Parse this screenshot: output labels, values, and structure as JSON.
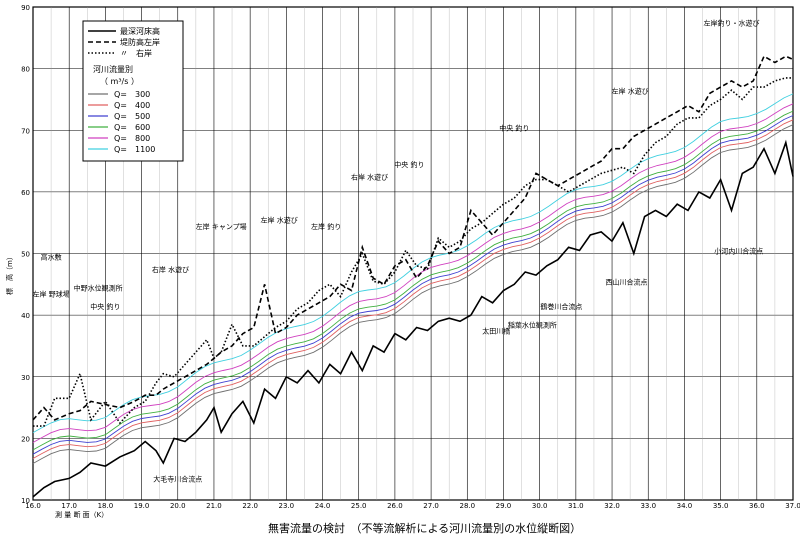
{
  "chart_data": {
    "type": "line",
    "title": "",
    "caption": "無害流量の検討　（不等流解析による河川流量別の水位縦断図）",
    "xlabel": "測 量 断 面（K）",
    "ylabel": "標　高（m）",
    "xlim": [
      16.0,
      37.0
    ],
    "ylim": [
      10,
      90
    ],
    "x_ticks": [
      "16.0",
      "17.0",
      "18.0",
      "19.0",
      "20.0",
      "21.0",
      "22.0",
      "23.0",
      "24.0",
      "25.0",
      "26.0",
      "27.0",
      "28.0",
      "29.0",
      "30.0",
      "31.0",
      "32.0",
      "33.0",
      "34.0",
      "35.0",
      "36.0",
      "37.0"
    ],
    "y_ticks": [
      "10",
      "20",
      "30",
      "40",
      "50",
      "60",
      "70",
      "80",
      "90"
    ],
    "grid": true,
    "legend": {
      "placement": "top-left",
      "lines": [
        {
          "label": "最深河床高",
          "style": "solid"
        },
        {
          "label": "堤防高左岸",
          "style": "dashed"
        },
        {
          "label": "〃　右岸",
          "style": "dotted"
        }
      ],
      "flow_title": "河川流量別",
      "flow_unit": "（ m³/s ）",
      "flows": [
        {
          "label": "Q=　300",
          "color": "#707070"
        },
        {
          "label": "Q=　400",
          "color": "#e06060"
        },
        {
          "label": "Q=　500",
          "color": "#4040d0"
        },
        {
          "label": "Q=　600",
          "color": "#40b040"
        },
        {
          "label": "Q=　800",
          "color": "#d040c0"
        },
        {
          "label": "Q=　1100",
          "color": "#40d0e0"
        }
      ]
    },
    "riverbed": {
      "name": "最深河床高",
      "x": [
        16.0,
        16.3,
        16.6,
        17.0,
        17.3,
        17.6,
        18.0,
        18.4,
        18.8,
        19.1,
        19.4,
        19.6,
        19.9,
        20.2,
        20.5,
        20.8,
        21.0,
        21.2,
        21.5,
        21.8,
        22.1,
        22.4,
        22.7,
        23.0,
        23.3,
        23.6,
        23.9,
        24.2,
        24.5,
        24.8,
        25.1,
        25.4,
        25.7,
        26.0,
        26.3,
        26.6,
        26.9,
        27.2,
        27.5,
        27.8,
        28.1,
        28.4,
        28.7,
        29.0,
        29.3,
        29.6,
        29.9,
        30.2,
        30.5,
        30.8,
        31.1,
        31.4,
        31.7,
        32.0,
        32.3,
        32.6,
        32.9,
        33.2,
        33.5,
        33.8,
        34.1,
        34.4,
        34.7,
        35.0,
        35.3,
        35.6,
        35.9,
        36.2,
        36.5,
        36.8,
        37.0
      ],
      "y": [
        10.5,
        12,
        13,
        13.5,
        14.5,
        16,
        15.5,
        17,
        18,
        19.5,
        18,
        16,
        20,
        19.5,
        21,
        23,
        25,
        21,
        24,
        26,
        22.5,
        28,
        26.5,
        30,
        29,
        31,
        29,
        32,
        30.5,
        34,
        31,
        35,
        34,
        37,
        36,
        38,
        37.5,
        39,
        39.5,
        39,
        40,
        43,
        42,
        44,
        45,
        47,
        46.5,
        48,
        49,
        51,
        50.5,
        53,
        53.5,
        52,
        55,
        50,
        56,
        57,
        56,
        58,
        57,
        60,
        59,
        62,
        57,
        63,
        64,
        67,
        63,
        68,
        62.5
      ]
    },
    "left_levee": {
      "name": "堤防高左岸",
      "x": [
        16.0,
        16.3,
        16.6,
        17.0,
        17.3,
        17.6,
        18.0,
        18.4,
        18.8,
        19.1,
        19.4,
        19.6,
        19.9,
        20.2,
        20.5,
        20.8,
        21.0,
        21.2,
        21.5,
        21.8,
        22.1,
        22.4,
        22.7,
        23.0,
        23.3,
        23.6,
        23.9,
        24.2,
        24.5,
        24.8,
        25.1,
        25.4,
        25.7,
        26.0,
        26.3,
        26.6,
        26.9,
        27.2,
        27.5,
        27.8,
        28.1,
        28.4,
        28.7,
        29.0,
        29.3,
        29.6,
        29.9,
        30.2,
        30.5,
        30.8,
        31.1,
        31.4,
        31.7,
        32.0,
        32.3,
        32.6,
        32.9,
        33.2,
        33.5,
        33.8,
        34.1,
        34.4,
        34.7,
        35.0,
        35.3,
        35.6,
        35.9,
        36.2,
        36.5,
        36.8,
        37.0
      ],
      "y": [
        23,
        25,
        23,
        24,
        24.5,
        26,
        25.5,
        25,
        26,
        27,
        27,
        28,
        29,
        30,
        31,
        32,
        33,
        34,
        35,
        37,
        38,
        45,
        37,
        38,
        40,
        41,
        42,
        43,
        45,
        44,
        51,
        46,
        45,
        48,
        49,
        46,
        48,
        52,
        50,
        51,
        57,
        55,
        53,
        55,
        57,
        59,
        63,
        62,
        61,
        62,
        63,
        64,
        65,
        67,
        67,
        69,
        70,
        71,
        72,
        73,
        74,
        73,
        76,
        77,
        78,
        77,
        78,
        82,
        81,
        82,
        81.5
      ]
    },
    "right_levee": {
      "name": "〃　右岸",
      "x": [
        16.0,
        16.3,
        16.6,
        17.0,
        17.3,
        17.6,
        18.0,
        18.4,
        18.8,
        19.1,
        19.4,
        19.6,
        19.9,
        20.2,
        20.5,
        20.8,
        21.0,
        21.2,
        21.5,
        21.8,
        22.1,
        22.4,
        22.7,
        23.0,
        23.3,
        23.6,
        23.9,
        24.2,
        24.5,
        24.8,
        25.1,
        25.4,
        25.7,
        26.0,
        26.3,
        26.6,
        26.9,
        27.2,
        27.5,
        27.8,
        28.1,
        28.4,
        28.7,
        29.0,
        29.3,
        29.6,
        29.9,
        30.2,
        30.5,
        30.8,
        31.1,
        31.4,
        31.7,
        32.0,
        32.3,
        32.6,
        32.9,
        33.2,
        33.5,
        33.8,
        34.1,
        34.4,
        34.7,
        35.0,
        35.3,
        35.6,
        35.9,
        36.2,
        36.5,
        36.8,
        37.0
      ],
      "y": [
        22,
        22,
        26.5,
        26.5,
        30.5,
        23,
        26,
        22.5,
        25,
        26,
        29,
        30.5,
        30,
        32,
        34,
        36,
        33,
        34,
        38.5,
        35,
        35,
        36.5,
        38,
        39,
        41,
        42,
        44,
        45,
        43,
        47,
        50,
        45.5,
        45,
        47,
        50.5,
        48,
        47.5,
        52.5,
        51,
        52,
        54,
        55,
        56.5,
        58,
        59,
        61,
        62,
        62,
        61,
        60,
        61,
        62,
        63,
        63.5,
        64,
        63,
        66,
        68,
        69,
        71,
        72,
        72,
        74,
        75,
        76.5,
        75,
        77,
        77,
        78,
        78.5,
        78.5
      ]
    },
    "series": [
      {
        "name": "Q=　300",
        "color": "#707070",
        "offset": 1.8
      },
      {
        "name": "Q=　400",
        "color": "#e06060",
        "offset": 2.6
      },
      {
        "name": "Q=　500",
        "color": "#4040d0",
        "offset": 3.3
      },
      {
        "name": "Q=　600",
        "color": "#40b040",
        "offset": 4.0
      },
      {
        "name": "Q=　800",
        "color": "#d040c0",
        "offset": 5.2
      },
      {
        "name": "Q=　1100",
        "color": "#40d0e0",
        "offset": 6.8
      }
    ],
    "water_base": {
      "x": [
        16.0,
        17.0,
        18.0,
        19.0,
        20.0,
        21.0,
        22.0,
        23.0,
        24.0,
        25.0,
        26.0,
        27.0,
        28.0,
        29.0,
        30.0,
        31.0,
        32.0,
        33.0,
        34.0,
        35.0,
        36.0,
        37.0
      ],
      "y": [
        14.5,
        16.0,
        17.0,
        19.5,
        22.0,
        25.0,
        28.0,
        30.5,
        33.5,
        36.5,
        39.0,
        42.0,
        45.0,
        47.5,
        50.5,
        53.0,
        55.5,
        58.0,
        61.0,
        64.0,
        66.5,
        68.5
      ]
    },
    "annotations": [
      {
        "text": "高水敷",
        "x": 16.5,
        "y": 49
      },
      {
        "text": "右岸 水遊び",
        "x": 19.8,
        "y": 47
      },
      {
        "text": "左岸 野球場",
        "x": 16.5,
        "y": 43
      },
      {
        "text": "中野水位観測所",
        "x": 17.8,
        "y": 44
      },
      {
        "text": "中央 釣り",
        "x": 18.0,
        "y": 41
      },
      {
        "text": "左岸 キャンプ場",
        "x": 21.2,
        "y": 54
      },
      {
        "text": "左岸 水遊び",
        "x": 22.8,
        "y": 55
      },
      {
        "text": "左岸 釣り",
        "x": 24.1,
        "y": 54
      },
      {
        "text": "右岸 水遊び",
        "x": 25.3,
        "y": 62
      },
      {
        "text": "中央 釣り",
        "x": 26.4,
        "y": 64
      },
      {
        "text": "中央 釣り",
        "x": 29.3,
        "y": 70
      },
      {
        "text": "左岸 水遊び",
        "x": 32.5,
        "y": 76
      },
      {
        "text": "左岸釣り・水遊び",
        "x": 35.3,
        "y": 87
      },
      {
        "text": "大毛寺川合流点",
        "x": 20.0,
        "y": 13
      },
      {
        "text": "太田川橋",
        "x": 28.8,
        "y": 37
      },
      {
        "text": "稲葉水位観測所",
        "x": 29.8,
        "y": 38
      },
      {
        "text": "鶴巻川合流点",
        "x": 30.6,
        "y": 41
      },
      {
        "text": "西山川合流点",
        "x": 32.4,
        "y": 45
      },
      {
        "text": "小河内川合流点",
        "x": 35.5,
        "y": 50
      }
    ]
  }
}
